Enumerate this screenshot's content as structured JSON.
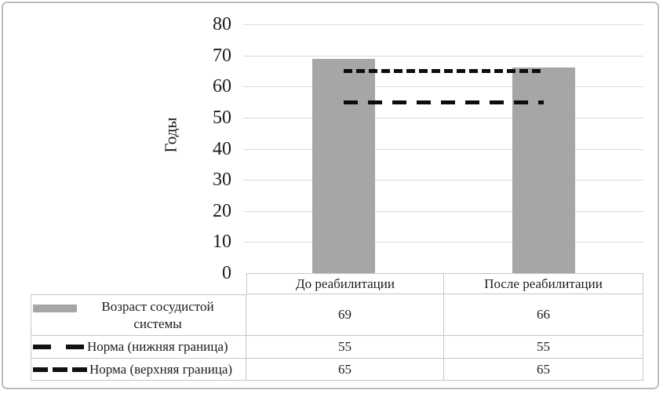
{
  "chart_data": {
    "type": "bar",
    "title": "",
    "xlabel": "",
    "ylabel": "Годы",
    "categories": [
      "До реабилитации",
      "После реабилитации"
    ],
    "series": [
      {
        "name": "Возраст сосудистой системы",
        "render": "bar",
        "values": [
          69,
          66
        ],
        "color": "#a6a6a6"
      },
      {
        "name": "Норма (нижняя граница)",
        "render": "dashed-line",
        "dash": "long",
        "values": [
          55,
          55
        ],
        "color": "#0d0d0d"
      },
      {
        "name": "Норма (верхняя граница)",
        "render": "dashed-line",
        "dash": "short",
        "values": [
          65,
          65
        ],
        "color": "#0d0d0d"
      }
    ],
    "ylim": [
      0,
      80
    ],
    "yticks": [
      0,
      10,
      20,
      30,
      40,
      50,
      60,
      70,
      80
    ],
    "grid": true,
    "gridline_color": "#d9d9d9",
    "legend_position": "left-of-data-table"
  },
  "table": {
    "column_headers": [
      "До реабилитации",
      "После реабилитации"
    ],
    "rows": [
      {
        "label": "Возраст сосудистой системы",
        "swatch": "bar",
        "values": [
          "69",
          "66"
        ]
      },
      {
        "label": "Норма (нижняя граница)",
        "swatch": "dash-long",
        "values": [
          "55",
          "55"
        ]
      },
      {
        "label": "Норма (верхняя граница)",
        "swatch": "dash-short",
        "values": [
          "65",
          "65"
        ]
      }
    ]
  }
}
